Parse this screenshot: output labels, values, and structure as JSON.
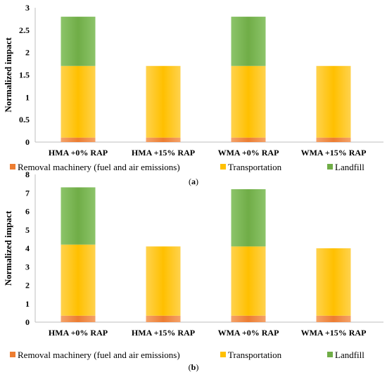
{
  "chart_data": [
    {
      "type": "bar",
      "stacked": true,
      "caption": "(a)",
      "caption_letter": "a",
      "ylabel": "Normalized impact",
      "ylim": [
        0,
        3
      ],
      "yticks": [
        "0",
        "0.5",
        "1",
        "1.5",
        "2",
        "2.5",
        "3"
      ],
      "grid": false,
      "legend_position": "bottom",
      "categories": [
        "HMA +0% RAP",
        "HMA +15% RAP",
        "WMA +0% RAP",
        "WMA +15% RAP"
      ],
      "series": [
        {
          "name": "Removal machinery (fuel and air emissions)",
          "color": "#ed7d31",
          "values": [
            0.1,
            0.1,
            0.1,
            0.1
          ]
        },
        {
          "name": "Transportation",
          "color": "#ffc000",
          "values": [
            1.6,
            1.6,
            1.6,
            1.6
          ]
        },
        {
          "name": "Landfill",
          "color": "#70ad47",
          "values": [
            1.1,
            0,
            1.1,
            0
          ]
        }
      ]
    },
    {
      "type": "bar",
      "stacked": true,
      "caption": "(b)",
      "caption_letter": "b",
      "ylabel": "Normalized impact",
      "ylim": [
        0,
        8
      ],
      "yticks": [
        "0",
        "1",
        "2",
        "3",
        "4",
        "5",
        "6",
        "7",
        "8"
      ],
      "grid": false,
      "legend_position": "bottom",
      "categories": [
        "HMA +0% RAP",
        "HMA +15% RAP",
        "WMA +0% RAP",
        "WMA +15% RAP"
      ],
      "series": [
        {
          "name": "Removal machinery (fuel and air emissions)",
          "color": "#ed7d31",
          "values": [
            0.35,
            0.35,
            0.35,
            0.35
          ]
        },
        {
          "name": "Transportation",
          "color": "#ffc000",
          "values": [
            3.85,
            3.75,
            3.75,
            3.65
          ]
        },
        {
          "name": "Landfill",
          "color": "#70ad47",
          "values": [
            3.1,
            0,
            3.1,
            0
          ]
        }
      ]
    }
  ]
}
